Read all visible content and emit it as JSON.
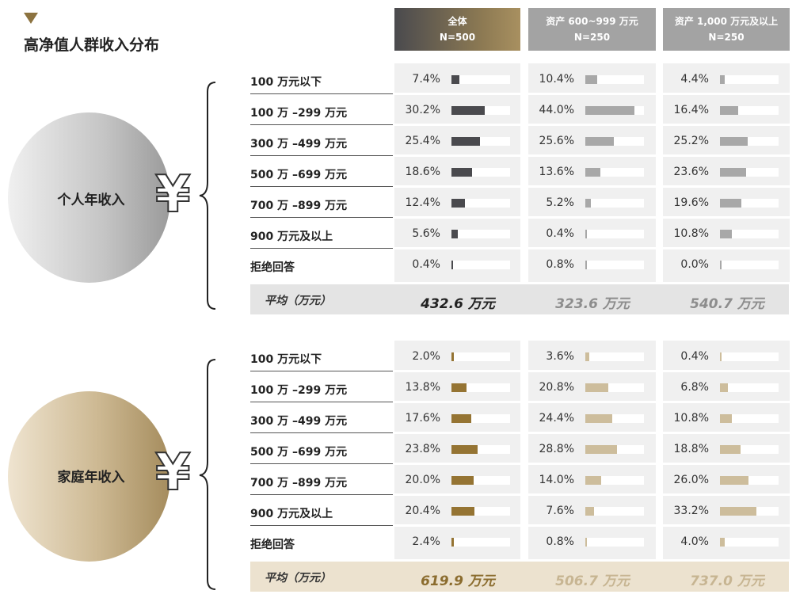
{
  "title": "高净值人群收入分布",
  "columns": [
    {
      "name": "全体",
      "n": "N=500"
    },
    {
      "name": "资产 600~999 万元",
      "n": "N=250"
    },
    {
      "name": "资产 1,000 万元及以上",
      "n": "N=250"
    }
  ],
  "avg_label": "平均（万元）",
  "yen_symbol": "¥",
  "colors": {
    "personal_col1": "#4a4a4e",
    "personal_col23": "#a8a8a8",
    "household_col1": "#957433",
    "household_col23": "#cdbd9c"
  },
  "sections": [
    {
      "name": "个人年收入",
      "averages": [
        "432.6 万元",
        "323.6 万元",
        "540.7 万元"
      ]
    },
    {
      "name": "家庭年收入",
      "averages": [
        "619.9 万元",
        "506.7 万元",
        "737.0 万元"
      ]
    }
  ],
  "chart_data": [
    {
      "type": "bar",
      "title": "个人年收入",
      "categories": [
        "100 万元以下",
        "100 万 –299 万元",
        "300 万 –499 万元",
        "500 万 –699 万元",
        "700 万 –899 万元",
        "900 万元及以上",
        "拒绝回答"
      ],
      "series": [
        {
          "name": "全体",
          "values": [
            7.4,
            30.2,
            25.4,
            18.6,
            12.4,
            5.6,
            0.4
          ],
          "labels": [
            "7.4%",
            "30.2%",
            "25.4%",
            "18.6%",
            "12.4%",
            "5.6%",
            "0.4%"
          ]
        },
        {
          "name": "资产 600~999 万元",
          "values": [
            10.4,
            44.0,
            25.6,
            13.6,
            5.2,
            0.4,
            0.8
          ],
          "labels": [
            "10.4%",
            "44.0%",
            "25.6%",
            "13.6%",
            "5.2%",
            "0.4%",
            "0.8%"
          ]
        },
        {
          "name": "资产 1,000 万元及以上",
          "values": [
            4.4,
            16.4,
            25.2,
            23.6,
            19.6,
            10.8,
            0.0
          ],
          "labels": [
            "4.4%",
            "16.4%",
            "25.2%",
            "23.6%",
            "19.6%",
            "10.8%",
            "0.0%"
          ]
        }
      ]
    },
    {
      "type": "bar",
      "title": "家庭年收入",
      "categories": [
        "100 万元以下",
        "100 万 –299 万元",
        "300 万 –499 万元",
        "500 万 –699 万元",
        "700 万 –899 万元",
        "900 万元及以上",
        "拒绝回答"
      ],
      "series": [
        {
          "name": "全体",
          "values": [
            2.0,
            13.8,
            17.6,
            23.8,
            20.0,
            20.4,
            2.4
          ],
          "labels": [
            "2.0%",
            "13.8%",
            "17.6%",
            "23.8%",
            "20.0%",
            "20.4%",
            "2.4%"
          ]
        },
        {
          "name": "资产 600~999 万元",
          "values": [
            3.6,
            20.8,
            24.4,
            28.8,
            14.0,
            7.6,
            0.8
          ],
          "labels": [
            "3.6%",
            "20.8%",
            "24.4%",
            "28.8%",
            "14.0%",
            "7.6%",
            "0.8%"
          ]
        },
        {
          "name": "资产 1,000 万元及以上",
          "values": [
            0.4,
            6.8,
            10.8,
            18.8,
            26.0,
            33.2,
            4.0
          ],
          "labels": [
            "0.4%",
            "6.8%",
            "10.8%",
            "18.8%",
            "26.0%",
            "33.2%",
            "4.0%"
          ]
        }
      ]
    }
  ]
}
